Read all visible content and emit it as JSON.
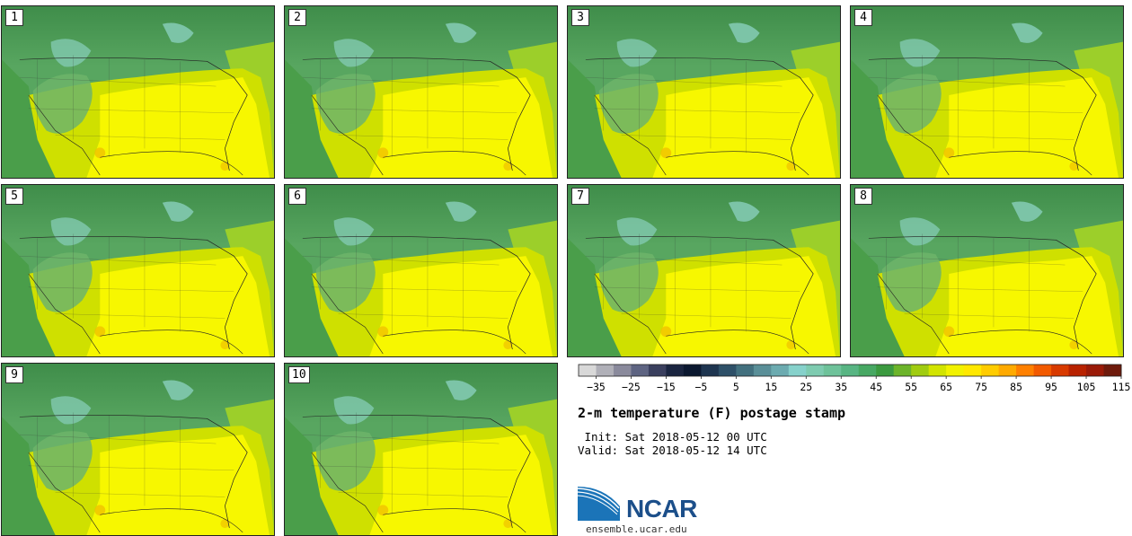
{
  "title": "2-m temperature (F) postage stamp",
  "init_line": " Init: Sat 2018-05-12 00 UTC",
  "valid_line": "Valid: Sat 2018-05-12 14 UTC",
  "logo_text": "NCAR",
  "site": "ensemble.ucar.edu",
  "members": [
    {
      "label": "1"
    },
    {
      "label": "2"
    },
    {
      "label": "3"
    },
    {
      "label": "4"
    },
    {
      "label": "5"
    },
    {
      "label": "6"
    },
    {
      "label": "7"
    },
    {
      "label": "8"
    },
    {
      "label": "9"
    },
    {
      "label": "10"
    }
  ],
  "colorbar": {
    "colors": [
      "#d8d8d8",
      "#b0b0b8",
      "#8a8a9c",
      "#5e6482",
      "#3a3f5e",
      "#1a2540",
      "#0b1830",
      "#1e3550",
      "#2e5068",
      "#42707e",
      "#5a8f98",
      "#6cabb0",
      "#86d1cb",
      "#7ecbb0",
      "#6ec29a",
      "#58b583",
      "#47a863",
      "#3b9a3f",
      "#6cb42a",
      "#a0cc10",
      "#d2e400",
      "#f2f200",
      "#ffe800",
      "#ffcc00",
      "#ffaa00",
      "#ff8000",
      "#f25a00",
      "#d83a00",
      "#b82200",
      "#9a1a08",
      "#6e1a0c"
    ],
    "ticks": [
      "−35",
      "−25",
      "−15",
      "−5",
      "5",
      "15",
      "25",
      "35",
      "45",
      "55",
      "65",
      "75",
      "85",
      "95",
      "105",
      "115"
    ],
    "vmin": -40,
    "vmax": 120
  },
  "colors": {
    "cold_green": "#3f8d4a",
    "mid_green": "#58a660",
    "teal": "#82c9b0",
    "yellow_green": "#cfe000",
    "yellow": "#f7f700",
    "ocean_green": "#4a9e4a",
    "orange": "#f0c000"
  }
}
